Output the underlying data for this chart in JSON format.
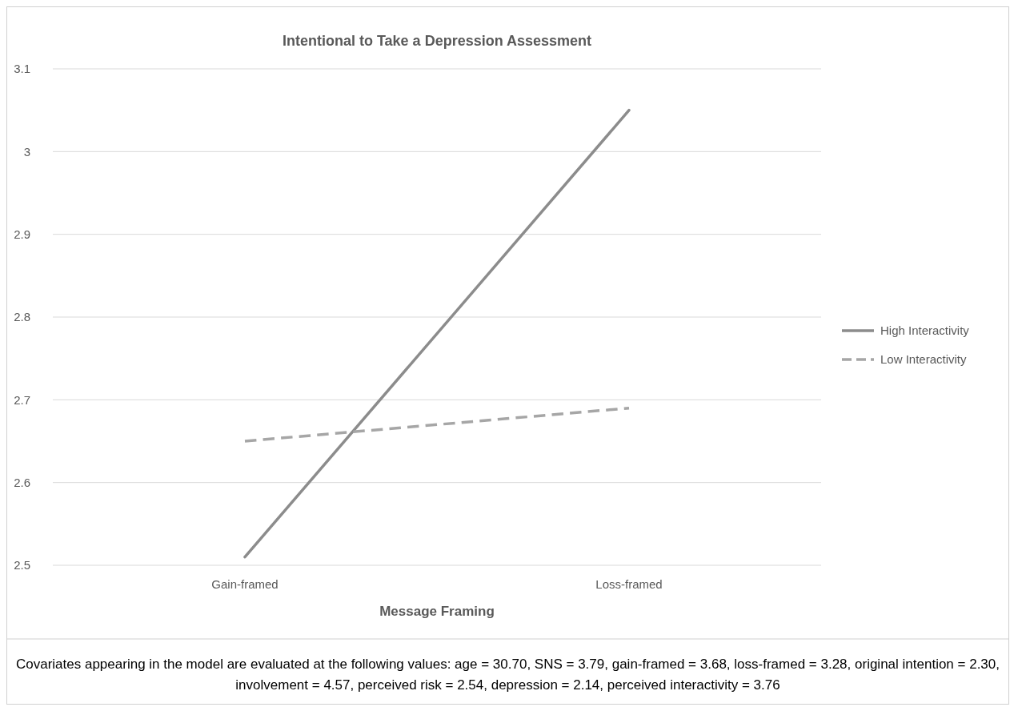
{
  "chart_data": {
    "type": "line",
    "title": "Intentional to Take a Depression Assessment",
    "xlabel": "Message Framing",
    "categories": [
      "Gain-framed",
      "Loss-framed"
    ],
    "series": [
      {
        "name": "High Interactivity",
        "color": "#8c8c8c",
        "values": [
          2.51,
          3.05
        ],
        "line_style": "solid"
      },
      {
        "name": "Low Interactivity",
        "color": "#a6a6a6",
        "values": [
          2.65,
          2.69
        ],
        "line_style": "dashed"
      }
    ],
    "ylim": [
      2.5,
      3.1
    ],
    "yticks": [
      2.5,
      2.6,
      2.7,
      2.8,
      2.9,
      3,
      3.1
    ],
    "grid": "y",
    "legend": "right",
    "marker": "none",
    "annotations": [
      "Covariates appearing in the model are evaluated at the following values: age = 30.70, SNS = 3.79, gain-framed = 3.68, loss-framed = 3.28, original intention = 2.30, involvement = 4.57, perceived risk = 2.54, depression = 2.14, perceived interactivity = 3.76"
    ]
  }
}
